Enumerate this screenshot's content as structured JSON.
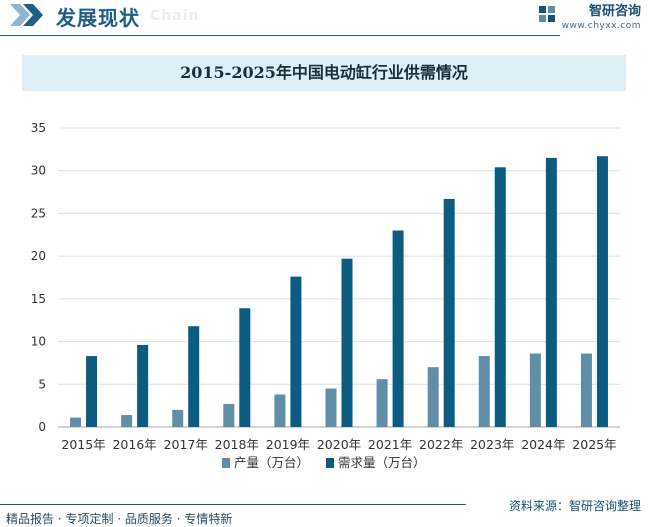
{
  "header": {
    "title": "发展现状",
    "watermark": "Chain",
    "brand_name": "智研咨询",
    "brand_url": "www.chyxx.com"
  },
  "footer": {
    "left": "精品报告 · 专项定制 · 品质服务 · 专情特新",
    "right": "资料来源：智研咨询整理"
  },
  "colors": {
    "header_accent": "#1d5f86",
    "production": "#5f8ea6",
    "demand": "#0b5c80"
  },
  "chart_data": {
    "type": "bar",
    "title": "2015-2025年中国电动缸行业供需情况",
    "categories": [
      "2015年",
      "2016年",
      "2017年",
      "2018年",
      "2019年",
      "2020年",
      "2021年",
      "2022年",
      "2023年",
      "2024年",
      "2025年"
    ],
    "series": [
      {
        "name": "产量（万台）",
        "values": [
          1.1,
          1.4,
          2.0,
          2.7,
          3.8,
          4.5,
          5.6,
          7.0,
          8.3,
          8.6,
          8.6
        ]
      },
      {
        "name": "需求量（万台）",
        "values": [
          8.3,
          9.6,
          11.8,
          13.9,
          17.6,
          19.7,
          23.0,
          26.7,
          30.4,
          31.5,
          31.7
        ]
      }
    ],
    "yticks": [
      0,
      5,
      10,
      15,
      20,
      25,
      30,
      35
    ],
    "ylim": [
      0,
      35
    ],
    "grid": true,
    "legend": "bottom"
  }
}
